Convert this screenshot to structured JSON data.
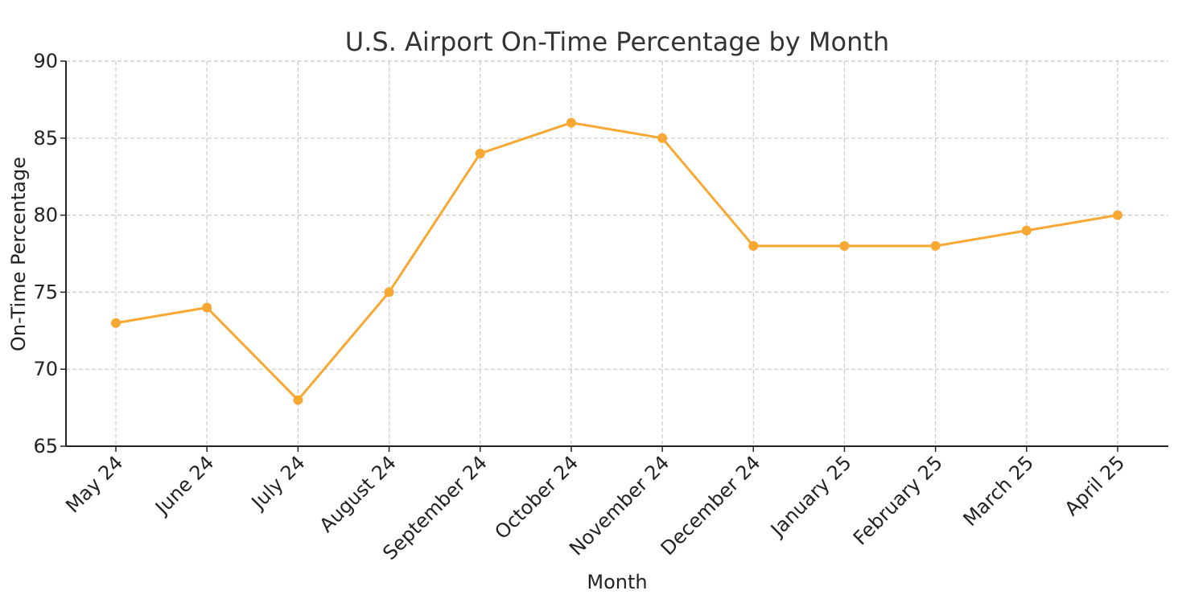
{
  "chart_data": {
    "type": "line",
    "title": "U.S. Airport On-Time Percentage by Month",
    "xlabel": "Month",
    "ylabel": "On-Time Percentage",
    "categories": [
      "May 24",
      "June 24",
      "July 24",
      "August 24",
      "September 24",
      "October 24",
      "November 24",
      "December 24",
      "January 25",
      "February 25",
      "March 25",
      "April 25"
    ],
    "series": [
      {
        "values": [
          73,
          74,
          68,
          75,
          84,
          86,
          85,
          78,
          78,
          78,
          79,
          80
        ],
        "color": "#F7A833"
      }
    ],
    "ylim": [
      65,
      90
    ],
    "yticks": [
      65,
      70,
      75,
      80,
      85,
      90
    ],
    "grid": true,
    "markers": true
  }
}
